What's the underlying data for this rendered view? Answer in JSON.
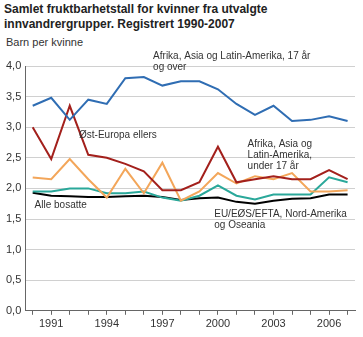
{
  "chart_data": {
    "type": "line",
    "title": "Samlet fruktbarhetstall for kvinner fra utvalgte innvandrergrupper. Registrert 1990-2007",
    "y_label": "Barn per kvinne",
    "categories": [
      null,
      "1991",
      null,
      null,
      "1994",
      null,
      null,
      "1997",
      null,
      null,
      "2000",
      null,
      null,
      "2003",
      null,
      null,
      "2006",
      null
    ],
    "series": [
      {
        "name": "Afrika, Asia og Latin-Amerika, 17 år og over",
        "color": "#2f6db3",
        "values": [
          3.35,
          3.48,
          3.12,
          3.45,
          3.38,
          3.8,
          3.82,
          3.68,
          3.75,
          3.75,
          3.62,
          3.38,
          3.2,
          3.35,
          3.1,
          3.12,
          3.18,
          3.1
        ]
      },
      {
        "name": "Øst-Europa ellers",
        "color": "#a3201c",
        "values": [
          3.0,
          2.48,
          3.35,
          2.55,
          2.5,
          2.4,
          2.28,
          1.97,
          1.97,
          2.1,
          2.68,
          2.1,
          2.15,
          2.2,
          2.15,
          2.15,
          2.3,
          2.15
        ]
      },
      {
        "name": "Afrika, Asia og Latin-Amerika, under 17 år",
        "color": "#f3a65a",
        "values": [
          2.18,
          2.15,
          2.48,
          2.15,
          1.85,
          2.32,
          1.92,
          2.42,
          1.8,
          1.95,
          2.25,
          2.08,
          2.2,
          2.15,
          2.25,
          1.95,
          1.95,
          1.97
        ]
      },
      {
        "name": "EU/EØS/EFTA, Nord-Amerika og Oseania",
        "color": "#2aa89a",
        "values": [
          1.95,
          1.95,
          2.0,
          2.0,
          1.92,
          1.92,
          1.95,
          1.85,
          1.8,
          1.88,
          2.05,
          1.88,
          1.82,
          1.9,
          1.9,
          1.9,
          2.18,
          2.1
        ]
      },
      {
        "name": "Alle bosatte",
        "color": "#000000",
        "values": [
          1.93,
          1.88,
          1.87,
          1.86,
          1.86,
          1.87,
          1.88,
          1.86,
          1.81,
          1.84,
          1.85,
          1.78,
          1.75,
          1.8,
          1.83,
          1.84,
          1.9,
          1.9
        ]
      }
    ],
    "ylim": [
      0,
      4
    ],
    "yticks": [
      {
        "value": 0,
        "label": "0,0"
      },
      {
        "value": 0.5,
        "label": "0,5"
      },
      {
        "value": 1,
        "label": "1,0"
      },
      {
        "value": 1.5,
        "label": "1,5"
      },
      {
        "value": 2,
        "label": "2,0"
      },
      {
        "value": 2.5,
        "label": "2,5"
      },
      {
        "value": 3,
        "label": "3,0"
      },
      {
        "value": 3.5,
        "label": "3,5"
      },
      {
        "value": 4,
        "label": "4,0"
      }
    ],
    "grid": true
  }
}
